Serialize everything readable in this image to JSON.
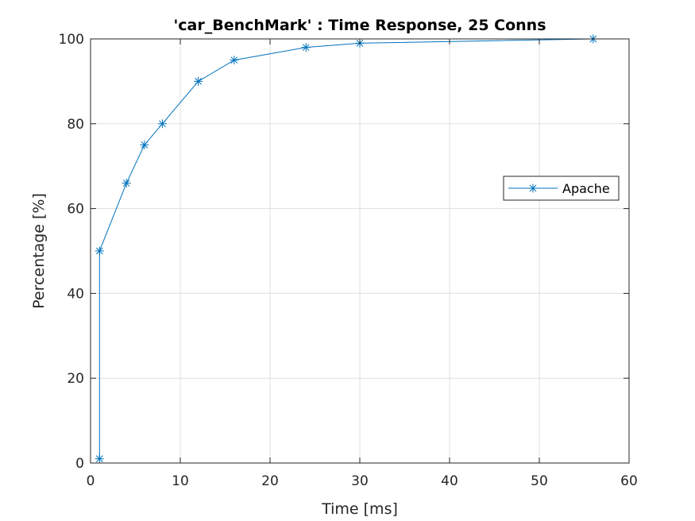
{
  "chart_data": {
    "type": "line",
    "title": "'car_BenchMark' : Time Response, 25 Conns",
    "xlabel": "Time [ms]",
    "ylabel": "Percentage [%]",
    "xlim": [
      0,
      60
    ],
    "ylim": [
      0,
      100
    ],
    "xticks": [
      0,
      10,
      20,
      30,
      40,
      50,
      60
    ],
    "yticks": [
      0,
      20,
      40,
      60,
      80,
      100
    ],
    "xtick_labels": [
      "0",
      "10",
      "20",
      "30",
      "40",
      "50",
      "60"
    ],
    "ytick_labels": [
      "0",
      "20",
      "40",
      "60",
      "80",
      "100"
    ],
    "grid": true,
    "legend_position": "right",
    "series": [
      {
        "name": "Apache",
        "color": "#0072BD",
        "marker": "asterisk",
        "x": [
          1,
          1,
          4,
          6,
          8,
          12,
          16,
          24,
          30,
          56
        ],
        "y": [
          1,
          50,
          66,
          75,
          80,
          90,
          95,
          98,
          99,
          100
        ]
      }
    ]
  }
}
